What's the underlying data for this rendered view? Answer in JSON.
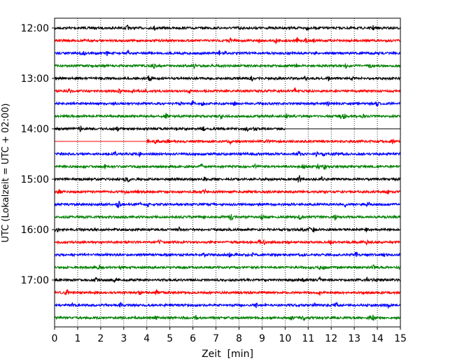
{
  "chart_data": {
    "type": "line",
    "title": "",
    "xlabel": "Zeit  [min]",
    "ylabel": "UTC (Lokalzeit = UTC + 02:00)",
    "xlim": [
      0,
      15
    ],
    "x_ticks": [
      "0",
      "1",
      "2",
      "3",
      "4",
      "5",
      "6",
      "7",
      "8",
      "9",
      "10",
      "11",
      "12",
      "13",
      "14",
      "15"
    ],
    "y_ticks": [
      "12:00",
      "13:00",
      "14:00",
      "15:00",
      "16:00",
      "17:00"
    ],
    "trace_interval_min": 15,
    "first_trace": "12:00",
    "grid": "vertical dotted at each minute",
    "colors": [
      "#000000",
      "#ff0000",
      "#0000ff",
      "#008000"
    ],
    "traces": [
      {
        "start": "12:00",
        "color": "#000000",
        "x_from": 0,
        "x_to": 15
      },
      {
        "start": "12:15",
        "color": "#ff0000",
        "x_from": 0,
        "x_to": 15
      },
      {
        "start": "12:30",
        "color": "#0000ff",
        "x_from": 0,
        "x_to": 15
      },
      {
        "start": "12:45",
        "color": "#008000",
        "x_from": 0,
        "x_to": 15
      },
      {
        "start": "13:00",
        "color": "#000000",
        "x_from": 0,
        "x_to": 15
      },
      {
        "start": "13:15",
        "color": "#ff0000",
        "x_from": 0,
        "x_to": 15
      },
      {
        "start": "13:30",
        "color": "#0000ff",
        "x_from": 0,
        "x_to": 15
      },
      {
        "start": "13:45",
        "color": "#008000",
        "x_from": 0,
        "x_to": 15
      },
      {
        "start": "14:00",
        "color": "#000000",
        "x_from": 0,
        "x_to": 10,
        "flat_after": true
      },
      {
        "start": "14:15",
        "color": "#ff0000",
        "x_from": 4,
        "x_to": 15,
        "flat_before": true
      },
      {
        "start": "14:30",
        "color": "#0000ff",
        "x_from": 0,
        "x_to": 15
      },
      {
        "start": "14:45",
        "color": "#008000",
        "x_from": 0,
        "x_to": 15
      },
      {
        "start": "15:00",
        "color": "#000000",
        "x_from": 0,
        "x_to": 15
      },
      {
        "start": "15:15",
        "color": "#ff0000",
        "x_from": 0,
        "x_to": 15
      },
      {
        "start": "15:30",
        "color": "#0000ff",
        "x_from": 0,
        "x_to": 15
      },
      {
        "start": "15:45",
        "color": "#008000",
        "x_from": 0,
        "x_to": 15
      },
      {
        "start": "16:00",
        "color": "#000000",
        "x_from": 0,
        "x_to": 15
      },
      {
        "start": "16:15",
        "color": "#ff0000",
        "x_from": 0,
        "x_to": 15
      },
      {
        "start": "16:30",
        "color": "#0000ff",
        "x_from": 0,
        "x_to": 15
      },
      {
        "start": "16:45",
        "color": "#008000",
        "x_from": 0,
        "x_to": 15
      },
      {
        "start": "17:00",
        "color": "#000000",
        "x_from": 0,
        "x_to": 15
      },
      {
        "start": "17:15",
        "color": "#ff0000",
        "x_from": 0,
        "x_to": 15
      },
      {
        "start": "17:30",
        "color": "#0000ff",
        "x_from": 0,
        "x_to": 15
      },
      {
        "start": "17:45",
        "color": "#008000",
        "x_from": 0,
        "x_to": 15
      }
    ]
  }
}
